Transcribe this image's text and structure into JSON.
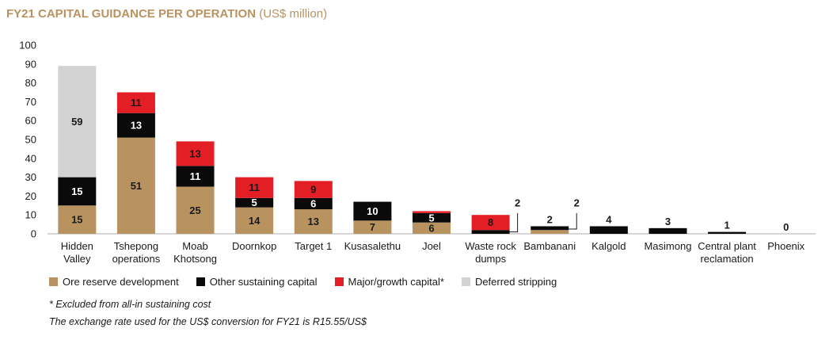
{
  "title": {
    "main": "FY21 CAPITAL GUIDANCE PER OPERATION",
    "sub": "(US$ million)"
  },
  "colors": {
    "ore": "#b8925f",
    "other": "#0a0a0a",
    "major": "#e31e24",
    "deferred": "#d2d2d2",
    "axis": "#bdbdbd"
  },
  "legend": {
    "ore": "Ore reserve development",
    "other": "Other sustaining capital",
    "major": "Major/growth capital*",
    "deferred": "Deferred stripping"
  },
  "footnotes": {
    "note1": "* Excluded from all-in sustaining cost",
    "note2": "The exchange rate used for the US$ conversion for FY21 is R15.55/US$"
  },
  "chart_data": {
    "type": "bar",
    "stacked": true,
    "title": "FY21 CAPITAL GUIDANCE PER OPERATION (US$ million)",
    "ylim": [
      0,
      100
    ],
    "yticks": [
      0,
      10,
      20,
      30,
      40,
      50,
      60,
      70,
      80,
      90,
      100
    ],
    "categories": [
      [
        "Hidden",
        "Valley"
      ],
      [
        "Tshepong",
        "operations"
      ],
      [
        "Moab",
        "Khotsong"
      ],
      [
        "Doornkop"
      ],
      [
        "Target 1"
      ],
      [
        "Kusasalethu"
      ],
      [
        "Joel"
      ],
      [
        "Waste rock",
        "dumps"
      ],
      [
        "Bambanani"
      ],
      [
        "Kalgold"
      ],
      [
        "Masimong"
      ],
      [
        "Central plant",
        "reclamation"
      ],
      [
        "Phoenix"
      ]
    ],
    "series": [
      {
        "name": "Ore reserve development",
        "key": "ore",
        "values": [
          15,
          51,
          25,
          14,
          13,
          7,
          6,
          0,
          2,
          0,
          0,
          0,
          0
        ],
        "labels": [
          "15",
          "51",
          "25",
          "14",
          "13",
          "7",
          "6",
          "",
          "",
          "",
          "",
          "",
          ""
        ]
      },
      {
        "name": "Other sustaining capital",
        "key": "other",
        "values": [
          15,
          13,
          11,
          5,
          6,
          10,
          5,
          2,
          2,
          4,
          3,
          1,
          0
        ],
        "labels": [
          "15",
          "13",
          "11",
          "5",
          "6",
          "10",
          "5",
          "",
          "",
          "",
          "",
          "",
          ""
        ]
      },
      {
        "name": "Major/growth capital*",
        "key": "major",
        "values": [
          0,
          11,
          13,
          11,
          9,
          0,
          1,
          8,
          0,
          0,
          0,
          0,
          0
        ],
        "labels": [
          "",
          "11",
          "13",
          "11",
          "9",
          "",
          "",
          "8",
          "",
          "",
          "",
          "",
          ""
        ]
      },
      {
        "name": "Deferred stripping",
        "key": "deferred",
        "values": [
          59,
          0,
          0,
          0,
          0,
          0,
          0,
          0,
          0,
          0,
          0,
          0,
          0
        ],
        "labels": [
          "59",
          "",
          "",
          "",
          "",
          "",
          "",
          "",
          "",
          "",
          "",
          "",
          ""
        ]
      }
    ],
    "top_labels": [
      "",
      "",
      "",
      "",
      "",
      "",
      "",
      "",
      "2",
      "4",
      "3",
      "1",
      "0"
    ],
    "callouts": [
      {
        "category_index": 7,
        "label": "2"
      },
      {
        "category_index": 8,
        "label": "2"
      }
    ]
  }
}
